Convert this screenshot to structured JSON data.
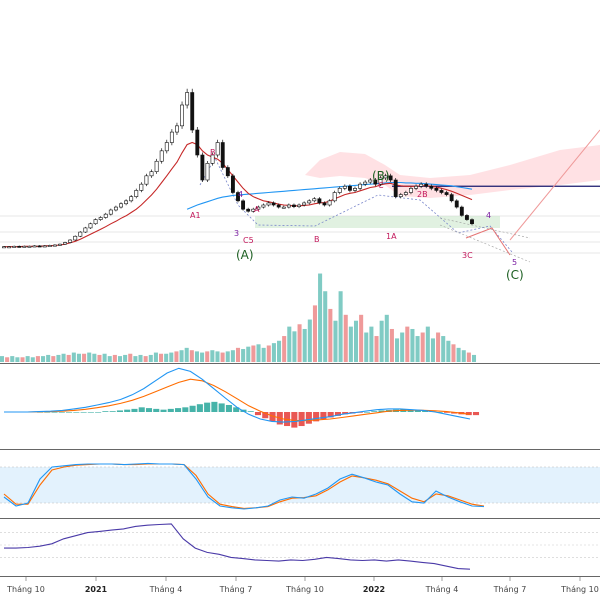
{
  "chart_data": {
    "type": "candlestick",
    "x_axis": {
      "ticks": [
        "Tháng 10",
        "2021",
        "Tháng 4",
        "Tháng 7",
        "Tháng 10",
        "2022",
        "Tháng 4",
        "Tháng 7",
        "Tháng 10"
      ],
      "bold_ticks": [
        "2021",
        "2022"
      ]
    },
    "price": {
      "closes": [
        8.0,
        8.0,
        8.1,
        8.0,
        8.1,
        8.1,
        8.2,
        8.1,
        8.2,
        8.3,
        8.4,
        8.6,
        9.0,
        9.6,
        10.5,
        11.5,
        12.5,
        13.5,
        14.5,
        15.0,
        15.8,
        16.8,
        17.5,
        18.3,
        19.0,
        20.0,
        21.5,
        23.0,
        25.0,
        26.0,
        28.5,
        31.0,
        33.0,
        35.5,
        37.0,
        42.0,
        45.0,
        36.0,
        30.0,
        24.0,
        28.0,
        30.0,
        33.0,
        27.0,
        25.0,
        21.0,
        19.0,
        17.0,
        16.5,
        17.0,
        17.5,
        18.0,
        18.5,
        18.0,
        17.5,
        17.5,
        18.0,
        17.6,
        18.0,
        18.5,
        19.0,
        19.5,
        18.5,
        18.0,
        19.0,
        21.0,
        22.0,
        22.5,
        21.5,
        22.0,
        23.0,
        23.5,
        24.0,
        23.0,
        24.5,
        25.0,
        24.0,
        20.0,
        20.5,
        21.0,
        22.0,
        22.5,
        23.0,
        22.5,
        22.0,
        21.5,
        21.0,
        20.5,
        19.0,
        17.5,
        15.5,
        14.5,
        13.5
      ],
      "ema_fast": [
        8.0,
        8.0,
        8.0,
        8.0,
        8.1,
        8.1,
        8.1,
        8.1,
        8.2,
        8.2,
        8.3,
        8.4,
        8.6,
        8.9,
        9.3,
        9.8,
        10.4,
        11.0,
        11.6,
        12.2,
        12.8,
        13.5,
        14.1,
        14.8,
        15.4,
        16.2,
        17.0,
        18.0,
        19.2,
        20.4,
        21.8,
        23.4,
        25.0,
        26.7,
        28.3,
        30.5,
        32.5,
        33.0,
        32.5,
        31.0,
        30.0,
        29.5,
        29.0,
        28.0,
        26.5,
        25.0,
        23.5,
        22.0,
        20.8,
        20.0,
        19.5,
        19.0,
        18.8,
        18.5,
        18.2,
        18.0,
        17.9,
        17.8,
        17.8,
        17.9,
        18.0,
        18.3,
        18.5,
        18.6,
        18.9,
        19.5,
        20.0,
        20.5,
        20.8,
        21.0,
        21.4,
        21.8,
        22.2,
        22.4,
        22.8,
        23.1,
        23.2,
        22.8,
        22.6,
        22.5,
        22.5,
        22.5,
        22.6,
        22.6,
        22.5,
        22.3,
        22.0,
        21.7,
        21.3,
        20.8,
        20.3,
        19.8,
        19.3
      ],
      "ema_slow": [
        null,
        null,
        null,
        null,
        null,
        null,
        null,
        null,
        null,
        null,
        null,
        null,
        null,
        null,
        null,
        null,
        null,
        null,
        null,
        null,
        null,
        null,
        null,
        null,
        null,
        null,
        null,
        null,
        null,
        null,
        null,
        null,
        null,
        null,
        null,
        null,
        17.0,
        17.5,
        18.0,
        18.4,
        18.8,
        19.2,
        19.6,
        19.9,
        20.1,
        20.3,
        20.4,
        20.5,
        20.6,
        20.7,
        20.8,
        20.9,
        21.0,
        21.1,
        21.2,
        21.3,
        21.4,
        21.5,
        21.6,
        21.7,
        21.8,
        21.9,
        22.0,
        22.1,
        22.2,
        22.3,
        22.4,
        22.5,
        22.6,
        22.7,
        22.8,
        22.9,
        23.0,
        23.1,
        23.2,
        23.3,
        23.4,
        23.4,
        23.4,
        23.3,
        23.3,
        23.2,
        23.2,
        23.1,
        23.0,
        22.9,
        22.8,
        22.7,
        22.6,
        22.4,
        22.2,
        22.0,
        21.8
      ],
      "horizontal_line_level": 22.5
    },
    "volume": [
      5,
      4,
      5,
      4,
      4,
      5,
      4,
      5,
      5,
      6,
      5,
      6,
      7,
      6,
      8,
      7,
      7,
      8,
      7,
      6,
      7,
      5,
      6,
      5,
      6,
      7,
      5,
      6,
      5,
      6,
      8,
      7,
      7,
      8,
      9,
      10,
      12,
      10,
      9,
      8,
      9,
      10,
      9,
      8,
      9,
      10,
      12,
      11,
      13,
      14,
      15,
      12,
      14,
      16,
      18,
      22,
      30,
      26,
      32,
      28,
      36,
      48,
      75,
      60,
      45,
      35,
      60,
      40,
      30,
      35,
      40,
      25,
      30,
      22,
      35,
      40,
      28,
      20,
      25,
      30,
      28,
      22,
      25,
      30,
      20,
      25,
      22,
      18,
      15,
      12,
      10,
      8,
      6
    ],
    "macd": {
      "macd_line": [
        0,
        0,
        0,
        0.05,
        0.1,
        0.2,
        0.4,
        0.6,
        0.9,
        1.2,
        1.6,
        2.2,
        3.0,
        4.0,
        5.0,
        5.6,
        5.2,
        4.2,
        3.0,
        1.8,
        0.6,
        -0.3,
        -0.9,
        -1.2,
        -1.3,
        -1.2,
        -1.0,
        -0.8,
        -0.6,
        -0.3,
        -0.1,
        0.1,
        0.3,
        0.4,
        0.4,
        0.3,
        0.2,
        0,
        -0.3,
        -0.6,
        -0.9
      ],
      "signal_line": [
        0,
        0,
        0,
        0.02,
        0.05,
        0.1,
        0.2,
        0.35,
        0.55,
        0.8,
        1.1,
        1.5,
        2.0,
        2.6,
        3.2,
        3.8,
        4.2,
        4.0,
        3.4,
        2.6,
        1.7,
        0.8,
        0.1,
        -0.5,
        -0.9,
        -1.1,
        -1.1,
        -1.0,
        -0.9,
        -0.7,
        -0.5,
        -0.3,
        -0.1,
        0.1,
        0.2,
        0.25,
        0.22,
        0.15,
        0.05,
        -0.1,
        -0.3
      ],
      "histogram": [
        0,
        0,
        0,
        0,
        0,
        0,
        0,
        0,
        0,
        0.1,
        0.1,
        0.2,
        0.3,
        0.4,
        0.6,
        0.5,
        0.4,
        0.3,
        0.4,
        0.5,
        0.6,
        0.8,
        1.0,
        1.2,
        1.3,
        1.1,
        0.9,
        0.6,
        0.3,
        0.1,
        -0.4,
        -0.8,
        -1.2,
        -1.6,
        -1.8,
        -2.0,
        -1.8,
        -1.5,
        -1.2,
        -0.9,
        -0.7,
        -0.5,
        -0.3,
        -0.2,
        -0.1,
        0,
        0.1,
        0.2,
        0.25,
        0.3,
        0.35,
        0.3,
        0.25,
        0.2,
        0.1,
        0,
        -0.1,
        -0.2,
        -0.3,
        -0.4,
        -0.4
      ]
    },
    "stochastic": {
      "k": [
        30,
        15,
        20,
        60,
        80,
        82,
        84,
        85,
        85,
        85,
        84,
        85,
        86,
        85,
        85,
        84,
        60,
        30,
        15,
        12,
        10,
        12,
        15,
        25,
        30,
        28,
        35,
        45,
        60,
        68,
        62,
        55,
        50,
        35,
        22,
        20,
        40,
        30,
        22,
        15,
        14
      ],
      "d": [
        35,
        18,
        18,
        50,
        75,
        80,
        83,
        84,
        85,
        85,
        84,
        84,
        85,
        85,
        85,
        84,
        66,
        35,
        18,
        14,
        11,
        12,
        14,
        22,
        28,
        29,
        32,
        42,
        55,
        65,
        62,
        58,
        52,
        40,
        28,
        22,
        35,
        32,
        25,
        18,
        15
      ],
      "upper_band": 80,
      "lower_band": 20
    },
    "rsi": [
      45,
      45,
      46,
      48,
      52,
      60,
      65,
      70,
      72,
      74,
      76,
      80,
      82,
      83,
      84,
      60,
      45,
      38,
      35,
      30,
      28,
      26,
      25,
      24,
      26,
      25,
      27,
      30,
      28,
      26,
      25,
      26,
      24,
      26,
      24,
      22,
      20,
      16,
      12,
      11
    ],
    "wave_labels": {
      "a1": "A1",
      "b_top": "B",
      "four": "4",
      "a_small": "A",
      "three": "3",
      "c5": "C5",
      "b_small": "B",
      "c_small": "C",
      "two_b": "2B",
      "one_a": "1A",
      "four_right": "4",
      "five_right": "5",
      "three_c": "3C",
      "big_b": "(B)",
      "big_a": "(A)",
      "big_c": "(C)"
    },
    "colors": {
      "candle": "#111111",
      "ema_fast": "#c62828",
      "ema_slow": "#2196f3",
      "horizontal_line": "#1a1a6e",
      "volume_up": "#80cbc4",
      "volume_down": "#ef9a9a",
      "macd_line": "#2196f3",
      "signal_line": "#ff6d00",
      "hist_pos": "#26a69a",
      "hist_neg": "#e53935",
      "stoch_band": "#e3f2fd",
      "rsi": "#4a3aa8",
      "wave_green": "#1b5e20",
      "wave_red": "#c2185b",
      "wave_purple": "#7b1fa2",
      "cloud": "#ffcdd2"
    }
  }
}
